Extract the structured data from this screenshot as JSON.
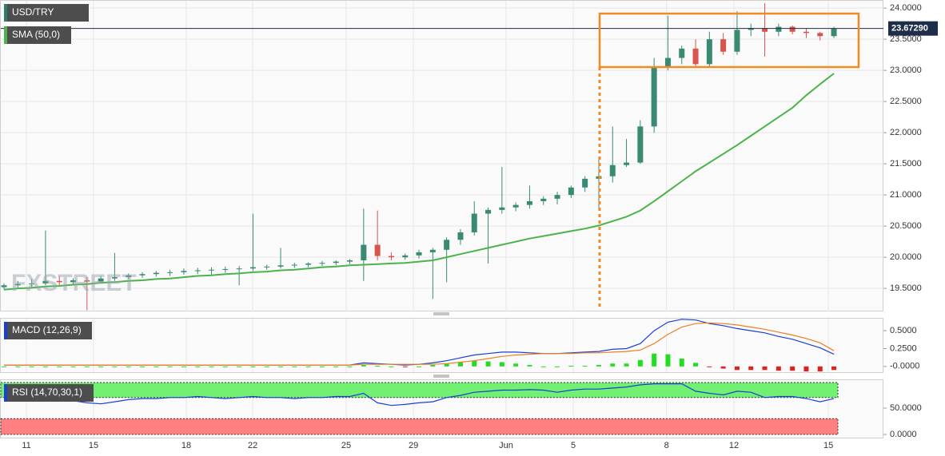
{
  "chart_data": [
    {
      "type": "candlestick",
      "title": "USD/TRY",
      "indicator": "SMA (50,0)",
      "watermark": "FXSTREET",
      "last_price": {
        "value": 23.6729,
        "label": "23.67290"
      },
      "up_color": "#3a8a73",
      "down_color": "#d9534f",
      "sma_color": "#4cb34a",
      "last_color": "#1e2d4a",
      "grid": true,
      "x": [
        0,
        1,
        2,
        3,
        4,
        5,
        6,
        7,
        8,
        9,
        10,
        11,
        12,
        13,
        14,
        15,
        16,
        17,
        18,
        19,
        20,
        21,
        22,
        23,
        24,
        25,
        26,
        27,
        28,
        29,
        30,
        31,
        32,
        33,
        34,
        35,
        36,
        37,
        38,
        39,
        40,
        41,
        42,
        43,
        44,
        45,
        46,
        47,
        48,
        49,
        50,
        51,
        52,
        53,
        54,
        55,
        56,
        57,
        58,
        59,
        60
      ],
      "open": [
        19.52,
        19.55,
        19.57,
        19.58,
        19.62,
        19.6,
        19.63,
        19.61,
        19.66,
        19.68,
        19.71,
        19.73,
        19.75,
        19.76,
        19.78,
        19.79,
        19.8,
        19.81,
        19.82,
        19.84,
        19.85,
        19.87,
        19.88,
        19.9,
        19.91,
        19.93,
        19.95,
        20.2,
        20.02,
        20.0,
        20.03,
        20.08,
        20.12,
        20.28,
        20.4,
        20.7,
        20.76,
        20.8,
        20.84,
        20.9,
        20.94,
        21.0,
        21.12,
        21.26,
        21.3,
        21.48,
        21.52,
        22.1,
        23.05,
        23.2,
        23.35,
        23.1,
        23.5,
        23.3,
        23.65,
        23.68,
        23.62,
        23.7,
        23.62,
        23.6,
        23.55
      ],
      "high": [
        19.58,
        19.62,
        19.65,
        20.43,
        19.7,
        19.66,
        19.68,
        19.7,
        20.07,
        19.74,
        19.76,
        19.78,
        19.8,
        19.82,
        19.83,
        19.84,
        19.85,
        19.86,
        20.7,
        19.88,
        20.15,
        19.91,
        19.92,
        19.94,
        19.95,
        19.97,
        20.78,
        20.75,
        20.08,
        20.06,
        20.12,
        20.15,
        20.32,
        20.45,
        20.9,
        20.8,
        21.45,
        20.88,
        21.15,
        20.98,
        21.05,
        21.15,
        21.3,
        21.6,
        22.1,
        21.9,
        22.2,
        23.2,
        23.88,
        23.4,
        23.5,
        23.62,
        23.6,
        23.95,
        23.75,
        24.08,
        23.75,
        23.72,
        23.68,
        23.62,
        23.7
      ],
      "low": [
        19.48,
        19.5,
        19.52,
        19.55,
        19.55,
        19.55,
        19.15,
        19.58,
        19.62,
        19.65,
        19.67,
        19.69,
        19.7,
        19.72,
        19.73,
        19.7,
        19.75,
        19.55,
        19.78,
        19.8,
        19.82,
        19.83,
        19.84,
        19.86,
        19.87,
        19.89,
        19.62,
        19.95,
        19.95,
        19.96,
        19.98,
        19.33,
        19.6,
        20.2,
        20.35,
        19.9,
        20.7,
        20.74,
        20.78,
        20.84,
        20.85,
        20.95,
        21.05,
        20.75,
        21.2,
        21.45,
        21.5,
        22.0,
        23.0,
        23.1,
        23.05,
        23.05,
        23.25,
        23.25,
        23.55,
        23.22,
        23.55,
        23.58,
        23.52,
        23.48,
        23.52
      ],
      "close": [
        19.55,
        19.57,
        19.58,
        19.62,
        19.6,
        19.63,
        19.61,
        19.66,
        19.68,
        19.71,
        19.73,
        19.75,
        19.76,
        19.78,
        19.79,
        19.8,
        19.81,
        19.82,
        19.84,
        19.85,
        19.87,
        19.88,
        19.9,
        19.91,
        19.93,
        19.95,
        20.2,
        20.02,
        20.0,
        20.03,
        20.08,
        20.12,
        20.28,
        20.4,
        20.7,
        20.76,
        20.8,
        20.84,
        20.9,
        20.94,
        21.0,
        21.12,
        21.26,
        21.3,
        21.48,
        21.52,
        22.1,
        23.05,
        23.2,
        23.35,
        23.1,
        23.5,
        23.3,
        23.65,
        23.68,
        23.62,
        23.7,
        23.62,
        23.6,
        23.55,
        23.67
      ],
      "sma": [
        19.48,
        19.5,
        19.51,
        19.53,
        19.54,
        19.56,
        19.57,
        19.59,
        19.6,
        19.62,
        19.63,
        19.65,
        19.66,
        19.68,
        19.7,
        19.71,
        19.73,
        19.74,
        19.76,
        19.77,
        19.79,
        19.8,
        19.82,
        19.84,
        19.85,
        19.87,
        19.88,
        19.89,
        19.9,
        19.91,
        19.93,
        19.95,
        20.0,
        20.05,
        20.1,
        20.15,
        20.2,
        20.25,
        20.3,
        20.34,
        20.38,
        20.42,
        20.46,
        20.51,
        20.58,
        20.65,
        20.75,
        20.9,
        21.06,
        21.22,
        21.38,
        21.52,
        21.66,
        21.8,
        21.95,
        22.1,
        22.25,
        22.4,
        22.6,
        22.78,
        22.95
      ],
      "xlim": [
        -0.29,
        63.58
      ],
      "ylim": [
        19.13,
        24.13
      ],
      "xticks": [
        {
          "value": 1.62,
          "label": "11"
        },
        {
          "value": 6.47,
          "label": "15"
        },
        {
          "value": 13.18,
          "label": "18"
        },
        {
          "value": 17.98,
          "label": "22"
        },
        {
          "value": 24.74,
          "label": "25"
        },
        {
          "value": 29.6,
          "label": "29"
        },
        {
          "value": 36.3,
          "label": "Jun"
        },
        {
          "value": 41.16,
          "label": "5"
        },
        {
          "value": 47.9,
          "label": "8"
        },
        {
          "value": 52.77,
          "label": "12"
        },
        {
          "value": 59.6,
          "label": "15"
        }
      ],
      "yticks": [
        {
          "value": 19.5,
          "label": "19.5000"
        },
        {
          "value": 20,
          "label": "20.0000"
        },
        {
          "value": 20.5,
          "label": "20.5000"
        },
        {
          "value": 21,
          "label": "21.0000"
        },
        {
          "value": 21.5,
          "label": "21.5000"
        },
        {
          "value": 22,
          "label": "22.0000"
        },
        {
          "value": 22.5,
          "label": "22.5000"
        },
        {
          "value": 23,
          "label": "23.0000"
        },
        {
          "value": 23.5,
          "label": "23.5000"
        },
        {
          "value": 24,
          "label": "24.0000"
        }
      ]
    },
    {
      "type": "macd",
      "title": "MACD (12,26,9)",
      "ylim": [
        -0.08,
        0.68
      ],
      "yticks": [
        {
          "value": 0.5,
          "label": "0.5000"
        },
        {
          "value": 0.25,
          "label": "0.2500"
        },
        {
          "value": 0,
          "label": "-0.0000"
        }
      ],
      "series": [
        {
          "color": "#1a3fd6",
          "values": [
            0.02,
            0.02,
            0.02,
            0.02,
            0.02,
            0.02,
            0.02,
            0.02,
            0.02,
            0.02,
            0.02,
            0.02,
            0.02,
            0.02,
            0.02,
            0.02,
            0.02,
            0.02,
            0.02,
            0.02,
            0.02,
            0.02,
            0.02,
            0.02,
            0.02,
            0.02,
            0.05,
            0.04,
            0.03,
            0.02,
            0.03,
            0.05,
            0.08,
            0.12,
            0.16,
            0.18,
            0.2,
            0.2,
            0.19,
            0.18,
            0.18,
            0.19,
            0.2,
            0.21,
            0.24,
            0.25,
            0.32,
            0.5,
            0.62,
            0.66,
            0.65,
            0.6,
            0.57,
            0.53,
            0.5,
            0.47,
            0.42,
            0.38,
            0.32,
            0.26,
            0.17
          ]
        },
        {
          "color": "#f07f1e",
          "values": [
            0.02,
            0.02,
            0.02,
            0.02,
            0.02,
            0.02,
            0.02,
            0.02,
            0.02,
            0.02,
            0.02,
            0.02,
            0.02,
            0.02,
            0.02,
            0.02,
            0.02,
            0.02,
            0.02,
            0.02,
            0.02,
            0.02,
            0.02,
            0.02,
            0.02,
            0.02,
            0.03,
            0.03,
            0.03,
            0.03,
            0.03,
            0.03,
            0.04,
            0.06,
            0.08,
            0.11,
            0.14,
            0.16,
            0.17,
            0.18,
            0.18,
            0.18,
            0.19,
            0.19,
            0.2,
            0.21,
            0.23,
            0.32,
            0.45,
            0.55,
            0.6,
            0.61,
            0.6,
            0.58,
            0.55,
            0.52,
            0.48,
            0.44,
            0.39,
            0.33,
            0.22
          ]
        }
      ],
      "histogram": [
        0,
        0,
        0,
        0,
        0,
        0,
        0,
        0,
        0,
        0,
        0,
        0,
        0,
        0,
        0,
        0,
        0,
        0,
        0,
        0,
        0,
        0,
        0,
        0,
        0,
        0,
        0.02,
        0.01,
        0,
        -0.01,
        0,
        0.02,
        0.04,
        0.06,
        0.08,
        0.07,
        0.06,
        0.04,
        0.02,
        0,
        0,
        0.01,
        0.01,
        0.02,
        0.04,
        0.04,
        0.09,
        0.18,
        0.17,
        0.11,
        0.05,
        -0.01,
        -0.03,
        -0.05,
        -0.05,
        -0.05,
        -0.06,
        -0.06,
        -0.07,
        -0.07,
        -0.05
      ],
      "histogram_colors": [
        "#22dd22",
        "#dd2222"
      ]
    },
    {
      "type": "rsi",
      "title": "RSI (14,70,30,1)",
      "ylim": [
        -6,
        104.5
      ],
      "overbought": 70,
      "oversold": 30,
      "band_colors": [
        "#72f072",
        "#ff8080"
      ],
      "color": "#1a3fd6",
      "yticks": [
        {
          "value": 50,
          "label": "50.0000"
        },
        {
          "value": 0,
          "label": "0.0000"
        }
      ],
      "values": [
        66,
        68,
        70,
        72,
        66,
        64,
        60,
        58,
        62,
        66,
        68,
        68,
        70,
        70,
        72,
        70,
        68,
        70,
        72,
        70,
        70,
        68,
        70,
        70,
        72,
        72,
        78,
        60,
        55,
        57,
        60,
        62,
        70,
        74,
        80,
        82,
        84,
        84,
        85,
        84,
        80,
        84,
        86,
        86,
        88,
        90,
        94,
        96,
        96,
        96,
        82,
        78,
        75,
        82,
        80,
        70,
        72,
        72,
        68,
        62,
        68
      ]
    }
  ]
}
